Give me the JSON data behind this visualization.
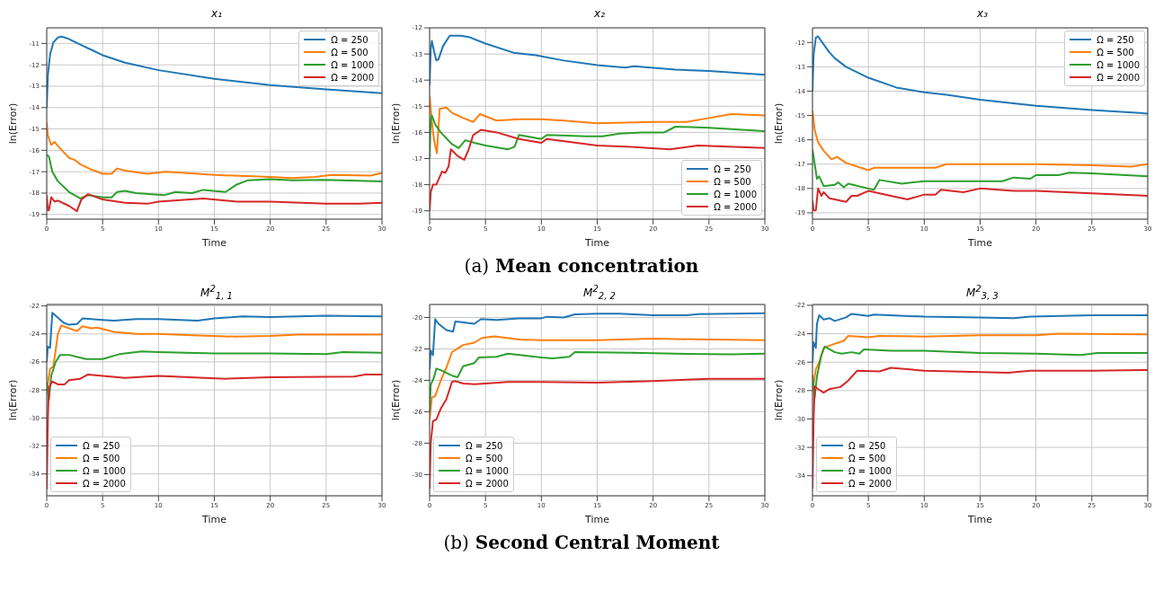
{
  "chart_data": [
    {
      "type": "line",
      "title": "x₁",
      "xlabel": "Time",
      "ylabel": "ln(Error)",
      "xlim": [
        0,
        30
      ],
      "xticks": [
        0,
        5,
        10,
        15,
        20,
        25,
        30
      ],
      "ylim": [
        -19.22,
        -10.27
      ],
      "yticks": [
        -19,
        -18,
        -17,
        -16,
        -15,
        -14,
        -13,
        -12,
        -11
      ],
      "grid": true,
      "legend": "top right",
      "line_style": "solid",
      "series": [
        {
          "name": "Ω = 250",
          "color": "#1f77b4",
          "x": [
            0,
            0.1,
            0.3,
            0.6,
            1,
            1.3,
            1.8,
            3,
            4,
            5,
            7,
            10,
            15,
            20,
            25,
            30
          ],
          "values": [
            -14,
            -12.5,
            -11.5,
            -10.95,
            -10.72,
            -10.68,
            -10.75,
            -11.05,
            -11.3,
            -11.55,
            -11.9,
            -12.25,
            -12.65,
            -12.95,
            -13.15,
            -13.33
          ]
        },
        {
          "name": "Ω = 500",
          "color": "#ff7f0e",
          "x": [
            0,
            0.1,
            0.4,
            0.7,
            1,
            2,
            2.5,
            3,
            4,
            5,
            5.8,
            6.3,
            7,
            9,
            10.6,
            12,
            15,
            20,
            22,
            24,
            25.5,
            29,
            30
          ],
          "values": [
            -14.7,
            -15.3,
            -15.75,
            -15.6,
            -15.8,
            -16.35,
            -16.45,
            -16.65,
            -16.9,
            -17.1,
            -17.1,
            -16.85,
            -16.95,
            -17.1,
            -17,
            -17.05,
            -17.15,
            -17.25,
            -17.3,
            -17.25,
            -17.15,
            -17.18,
            -17.05
          ]
        },
        {
          "name": "Ω = 1000",
          "color": "#2ca02c",
          "x": [
            0,
            0.2,
            0.5,
            1,
            2,
            3,
            3.7,
            5,
            5.8,
            6.3,
            7,
            8,
            10.5,
            11.5,
            13,
            14,
            16,
            17,
            18,
            20,
            22,
            25,
            30
          ],
          "values": [
            -16.2,
            -16.3,
            -17,
            -17.45,
            -17.95,
            -18.25,
            -18.1,
            -18.2,
            -18.2,
            -17.95,
            -17.9,
            -18,
            -18.1,
            -17.95,
            -18,
            -17.85,
            -17.95,
            -17.6,
            -17.4,
            -17.35,
            -17.4,
            -17.38,
            -17.45
          ]
        },
        {
          "name": "Ω = 2000",
          "color": "#d62728",
          "x": [
            0,
            0.1,
            0.2,
            0.4,
            0.7,
            1,
            2,
            2.7,
            3.1,
            3.7,
            5,
            7,
            9,
            10,
            14,
            17,
            20,
            25,
            28,
            30
          ],
          "values": [
            -18.1,
            -18.8,
            -18.8,
            -18.2,
            -18.4,
            -18.35,
            -18.6,
            -18.85,
            -18.3,
            -18.05,
            -18.3,
            -18.45,
            -18.5,
            -18.4,
            -18.25,
            -18.4,
            -18.4,
            -18.5,
            -18.5,
            -18.45
          ]
        }
      ]
    },
    {
      "type": "line",
      "title": "x₂",
      "xlabel": "Time",
      "ylabel": "ln(Error)",
      "xlim": [
        0,
        30
      ],
      "xticks": [
        0,
        5,
        10,
        15,
        20,
        25,
        30
      ],
      "ylim": [
        -19.32,
        -12
      ],
      "yticks": [
        -19,
        -18,
        -17,
        -16,
        -15,
        -14,
        -13,
        -12
      ],
      "grid": true,
      "legend": "bottom right",
      "line_style": "solid",
      "annotations": [
        "(a) Mean concentration"
      ],
      "series": [
        {
          "name": "Ω = 250",
          "color": "#1f77b4",
          "x": [
            0,
            0.1,
            0.2,
            0.4,
            0.6,
            0.8,
            1.2,
            1.8,
            2.8,
            3.5,
            5,
            7.5,
            9.5,
            12,
            15,
            17.5,
            18.3,
            22,
            25,
            30
          ],
          "values": [
            -14.2,
            -12.8,
            -12.5,
            -12.9,
            -13.25,
            -13.2,
            -12.7,
            -12.3,
            -12.3,
            -12.35,
            -12.6,
            -12.95,
            -13.05,
            -13.25,
            -13.43,
            -13.52,
            -13.47,
            -13.6,
            -13.65,
            -13.8
          ]
        },
        {
          "name": "Ω = 500",
          "color": "#ff7f0e",
          "x": [
            0,
            0.2,
            0.4,
            0.65,
            0.9,
            1.5,
            2,
            3,
            3.9,
            4.5,
            6,
            8,
            10,
            12,
            15,
            20,
            23,
            25,
            27,
            30
          ],
          "values": [
            -14.6,
            -15.6,
            -16.3,
            -16.8,
            -15.1,
            -15.05,
            -15.25,
            -15.45,
            -15.6,
            -15.3,
            -15.55,
            -15.5,
            -15.5,
            -15.55,
            -15.65,
            -15.6,
            -15.6,
            -15.45,
            -15.3,
            -15.35
          ]
        },
        {
          "name": "Ω = 1000",
          "color": "#2ca02c",
          "x": [
            0,
            0.1,
            0.2,
            0.5,
            1,
            2,
            2.6,
            3.2,
            4,
            5,
            7,
            7.6,
            8,
            10,
            10.5,
            14,
            15.5,
            17,
            19,
            21,
            22,
            25,
            30
          ],
          "values": [
            -17,
            -15.5,
            -15.35,
            -15.7,
            -16,
            -16.45,
            -16.6,
            -16.3,
            -16.4,
            -16.5,
            -16.65,
            -16.55,
            -16.1,
            -16.25,
            -16.1,
            -16.15,
            -16.15,
            -16.05,
            -16,
            -16,
            -15.78,
            -15.82,
            -15.95
          ]
        },
        {
          "name": "Ω = 2000",
          "color": "#d62728",
          "x": [
            0,
            0.1,
            0.3,
            0.6,
            0.8,
            1.1,
            1.4,
            1.7,
            1.9,
            2.5,
            3.1,
            3.5,
            3.9,
            4.6,
            6,
            8,
            10,
            10.5,
            15,
            18,
            21.5,
            24,
            30
          ],
          "values": [
            -19,
            -18.3,
            -18,
            -18,
            -17.8,
            -17.5,
            -17.55,
            -17.3,
            -16.65,
            -16.9,
            -17.05,
            -16.65,
            -16.1,
            -15.9,
            -16,
            -16.25,
            -16.4,
            -16.25,
            -16.5,
            -16.55,
            -16.65,
            -16.5,
            -16.6
          ]
        }
      ]
    },
    {
      "type": "line",
      "title": "x₃",
      "xlabel": "Time",
      "ylabel": "ln(Error)",
      "xlim": [
        0,
        30
      ],
      "xticks": [
        0,
        5,
        10,
        15,
        20,
        25,
        30
      ],
      "ylim": [
        -19.26,
        -11.4
      ],
      "yticks": [
        -19,
        -18,
        -17,
        -16,
        -15,
        -14,
        -13,
        -12
      ],
      "grid": true,
      "legend": "top right",
      "line_style": "solid",
      "series": [
        {
          "name": "Ω = 250",
          "color": "#1f77b4",
          "x": [
            0,
            0.1,
            0.3,
            0.5,
            0.8,
            1.5,
            2,
            3,
            5,
            7.5,
            10,
            12,
            15,
            20,
            25,
            30
          ],
          "values": [
            -14,
            -12.5,
            -11.8,
            -11.75,
            -11.95,
            -12.4,
            -12.65,
            -13,
            -13.45,
            -13.85,
            -14.05,
            -14.15,
            -14.35,
            -14.6,
            -14.78,
            -14.92
          ]
        },
        {
          "name": "Ω = 500",
          "color": "#ff7f0e",
          "x": [
            0,
            0.2,
            0.5,
            1,
            1.7,
            2.2,
            3,
            5,
            5.5,
            8,
            11,
            12,
            15,
            20,
            25,
            28.5,
            30
          ],
          "values": [
            -14.8,
            -15.6,
            -16.1,
            -16.45,
            -16.8,
            -16.7,
            -16.95,
            -17.25,
            -17.15,
            -17.15,
            -17.15,
            -17,
            -17,
            -17,
            -17.05,
            -17.1,
            -17
          ]
        },
        {
          "name": "Ω = 1000",
          "color": "#2ca02c",
          "x": [
            0,
            0.2,
            0.4,
            0.6,
            1,
            2,
            2.3,
            2.8,
            3.2,
            5,
            5.5,
            6,
            8,
            10,
            15,
            17,
            18,
            19.5,
            20,
            22,
            23,
            25,
            30
          ],
          "values": [
            -16.4,
            -17,
            -17.6,
            -17.5,
            -17.9,
            -17.85,
            -17.75,
            -17.95,
            -17.8,
            -18,
            -18.05,
            -17.65,
            -17.8,
            -17.7,
            -17.7,
            -17.7,
            -17.55,
            -17.6,
            -17.45,
            -17.45,
            -17.35,
            -17.38,
            -17.5
          ]
        },
        {
          "name": "Ω = 2000",
          "color": "#d62728",
          "x": [
            0,
            0.1,
            0.3,
            0.5,
            0.8,
            1,
            1.5,
            2,
            3,
            3.5,
            4,
            5,
            7,
            8.5,
            10,
            11,
            11.5,
            13.5,
            15,
            18,
            20,
            25,
            30
          ],
          "values": [
            -18.5,
            -18.9,
            -18.9,
            -18,
            -18.3,
            -18.15,
            -18.4,
            -18.45,
            -18.55,
            -18.3,
            -18.3,
            -18.1,
            -18.3,
            -18.45,
            -18.25,
            -18.25,
            -18.05,
            -18.15,
            -18,
            -18.1,
            -18.1,
            -18.2,
            -18.3
          ]
        }
      ]
    },
    {
      "type": "line",
      "title": "M$^{2}$$_{1, 1}$",
      "xlabel": "Time",
      "ylabel": "ln(Error)",
      "xlim": [
        0,
        30
      ],
      "xticks": [
        0,
        5,
        10,
        15,
        20,
        25,
        30
      ],
      "ylim": [
        -35.56,
        -21.9
      ],
      "yticks": [
        -34,
        -32,
        -30,
        -28,
        -26,
        -24,
        -22
      ],
      "grid": true,
      "legend": "bottom left",
      "line_style": "solid",
      "series": [
        {
          "name": "Ω = 250",
          "color": "#1f77b4",
          "x": [
            0,
            0.1,
            0.3,
            0.5,
            0.8,
            1.5,
            2,
            2.7,
            3.2,
            5,
            6,
            8,
            10,
            13.5,
            15,
            17.5,
            20,
            25,
            30
          ],
          "values": [
            -26,
            -24.9,
            -25,
            -22.5,
            -22.7,
            -23.2,
            -23.35,
            -23.3,
            -22.9,
            -23,
            -23.05,
            -22.95,
            -22.95,
            -23.05,
            -22.9,
            -22.75,
            -22.8,
            -22.7,
            -22.75
          ]
        },
        {
          "name": "Ω = 500",
          "color": "#ff7f0e",
          "x": [
            0,
            0.3,
            0.6,
            1,
            1.3,
            2,
            2.7,
            3.2,
            4,
            4.5,
            6,
            8,
            10,
            13,
            17,
            20,
            22.5,
            28,
            30
          ],
          "values": [
            -28,
            -26.5,
            -26.3,
            -24,
            -23.4,
            -23.6,
            -23.8,
            -23.45,
            -23.6,
            -23.55,
            -23.85,
            -24,
            -24,
            -24.1,
            -24.2,
            -24.15,
            -24.05,
            -24.05,
            -24.05
          ]
        },
        {
          "name": "Ω = 1000",
          "color": "#2ca02c",
          "x": [
            0,
            0.2,
            0.4,
            0.8,
            1.2,
            2,
            3.5,
            5,
            6.5,
            8.5,
            10,
            15,
            20,
            25,
            26.5,
            30
          ],
          "values": [
            -27.5,
            -28.7,
            -27,
            -26,
            -25.5,
            -25.5,
            -25.8,
            -25.8,
            -25.45,
            -25.25,
            -25.3,
            -25.4,
            -25.4,
            -25.45,
            -25.3,
            -25.35
          ]
        },
        {
          "name": "Ω = 2000",
          "color": "#d62728",
          "x": [
            0,
            0.1,
            0.2,
            0.5,
            1,
            1.6,
            2,
            3,
            3.7,
            5,
            7,
            10,
            16,
            20,
            27.5,
            28.5,
            30
          ],
          "values": [
            -35.1,
            -30,
            -27.8,
            -27.4,
            -27.6,
            -27.6,
            -27.3,
            -27.2,
            -26.9,
            -27,
            -27.15,
            -27,
            -27.2,
            -27.1,
            -27.05,
            -26.9,
            -26.9
          ]
        }
      ]
    },
    {
      "type": "line",
      "title": "M$^{2}$$_{2, 2}$",
      "xlabel": "Time",
      "ylabel": "ln(Error)",
      "xlim": [
        0,
        30
      ],
      "xticks": [
        0,
        5,
        10,
        15,
        20,
        25,
        30
      ],
      "ylim": [
        -31.35,
        -19.17
      ],
      "yticks": [
        -30,
        -28,
        -26,
        -24,
        -22,
        -20
      ],
      "grid": true,
      "legend": "bottom left",
      "line_style": "solid",
      "annotations": [
        "(b) Second Central Moment"
      ],
      "series": [
        {
          "name": "Ω = 250",
          "color": "#1f77b4",
          "x": [
            0,
            0.1,
            0.3,
            0.5,
            0.8,
            1.5,
            2.1,
            2.3,
            4,
            4.6,
            6,
            8,
            10,
            10.5,
            12,
            13,
            15,
            17,
            20,
            23,
            24,
            30
          ],
          "values": [
            -23.3,
            -22.1,
            -22.4,
            -20.1,
            -20.4,
            -20.8,
            -20.9,
            -20.25,
            -20.4,
            -20.1,
            -20.15,
            -20.05,
            -20.05,
            -19.95,
            -20,
            -19.8,
            -19.75,
            -19.75,
            -19.85,
            -19.85,
            -19.78,
            -19.73
          ]
        },
        {
          "name": "Ω = 500",
          "color": "#ff7f0e",
          "x": [
            0,
            0.2,
            0.5,
            1,
            1.5,
            2,
            3,
            4,
            4.7,
            5.8,
            8,
            10,
            15,
            20,
            25,
            30
          ],
          "values": [
            -26.5,
            -25.1,
            -25,
            -24,
            -23.2,
            -22.2,
            -21.75,
            -21.6,
            -21.3,
            -21.2,
            -21.4,
            -21.45,
            -21.45,
            -21.35,
            -21.4,
            -21.45
          ]
        },
        {
          "name": "Ω = 1000",
          "color": "#2ca02c",
          "x": [
            0,
            0.1,
            0.4,
            0.6,
            1,
            2,
            2.5,
            3,
            4,
            4.4,
            6,
            7,
            10,
            11,
            12.5,
            13,
            18,
            22,
            27,
            30
          ],
          "values": [
            -26,
            -24.3,
            -23.8,
            -23.25,
            -23.35,
            -23.7,
            -23.8,
            -23.1,
            -22.9,
            -22.55,
            -22.5,
            -22.3,
            -22.55,
            -22.6,
            -22.5,
            -22.2,
            -22.25,
            -22.3,
            -22.35,
            -22.3
          ]
        },
        {
          "name": "Ω = 2000",
          "color": "#d62728",
          "x": [
            0,
            0.1,
            0.3,
            0.6,
            1,
            1.5,
            2,
            2.3,
            3,
            4,
            5,
            7,
            10,
            15,
            20,
            25,
            30
          ],
          "values": [
            -30.9,
            -28,
            -26.6,
            -26.5,
            -25.8,
            -25.2,
            -24.1,
            -24.05,
            -24.2,
            -24.25,
            -24.2,
            -24.1,
            -24.1,
            -24.15,
            -24.05,
            -23.9,
            -23.9
          ]
        }
      ]
    },
    {
      "type": "line",
      "title": "M$^{2}$$_{3, 3}$",
      "xlabel": "Time",
      "ylabel": "ln(Error)",
      "xlim": [
        0,
        30
      ],
      "xticks": [
        0,
        5,
        10,
        15,
        20,
        25,
        30
      ],
      "ylim": [
        -35.41,
        -21.94
      ],
      "yticks": [
        -34,
        -32,
        -30,
        -28,
        -26,
        -24,
        -22
      ],
      "grid": true,
      "legend": "bottom left",
      "line_style": "solid",
      "series": [
        {
          "name": "Ω = 250",
          "color": "#1f77b4",
          "x": [
            0,
            0.1,
            0.3,
            0.4,
            0.6,
            1,
            1.5,
            2,
            3,
            3.5,
            5,
            5.5,
            10,
            15,
            18,
            19.5,
            25,
            30
          ],
          "values": [
            -26,
            -24.6,
            -25,
            -23.3,
            -22.7,
            -23,
            -22.9,
            -23.1,
            -22.85,
            -22.6,
            -22.75,
            -22.65,
            -22.8,
            -22.85,
            -22.9,
            -22.8,
            -22.7,
            -22.7
          ]
        },
        {
          "name": "Ω = 500",
          "color": "#ff7f0e",
          "x": [
            0,
            0.3,
            0.6,
            1,
            2,
            2.8,
            3.2,
            5,
            6,
            10,
            15,
            20,
            22,
            30
          ],
          "values": [
            -28,
            -26.5,
            -26,
            -25,
            -24.7,
            -24.5,
            -24.15,
            -24.25,
            -24.15,
            -24.2,
            -24.1,
            -24.1,
            -24,
            -24.05
          ]
        },
        {
          "name": "Ω = 1000",
          "color": "#2ca02c",
          "x": [
            0,
            0.2,
            0.4,
            0.8,
            1.1,
            2,
            2.6,
            3.5,
            4.2,
            4.6,
            7,
            10,
            15,
            20,
            24,
            25.5,
            30
          ],
          "values": [
            -26.9,
            -28.5,
            -27,
            -25.5,
            -24.9,
            -25.3,
            -25.4,
            -25.3,
            -25.4,
            -25.1,
            -25.2,
            -25.2,
            -25.35,
            -25.4,
            -25.5,
            -25.35,
            -25.35
          ]
        },
        {
          "name": "Ω = 2000",
          "color": "#d62728",
          "x": [
            0,
            0.1,
            0.2,
            0.5,
            1,
            1.5,
            2.5,
            3.2,
            4,
            6,
            7,
            10,
            15,
            17.5,
            19.5,
            25,
            30
          ],
          "values": [
            -34.9,
            -30,
            -27.7,
            -27.9,
            -28.15,
            -27.9,
            -27.75,
            -27.3,
            -26.6,
            -26.65,
            -26.4,
            -26.6,
            -26.7,
            -26.75,
            -26.6,
            -26.6,
            -26.55
          ]
        }
      ]
    }
  ]
}
